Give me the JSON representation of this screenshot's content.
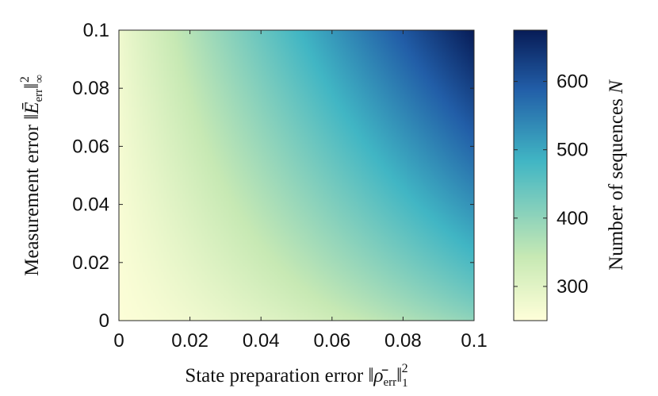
{
  "chart_data": {
    "type": "heatmap",
    "title": "",
    "xlabel": {
      "text": "State preparation error",
      "symbol": "‖ρ̄",
      "symbol_sub": "err",
      "symbol_tail": "‖",
      "norm_sub": "1",
      "norm_sup": "2"
    },
    "ylabel": {
      "text": "Measurement error",
      "symbol": "‖Ē",
      "symbol_sub": "err",
      "symbol_tail": "‖",
      "norm_sub": "∞",
      "norm_sup": "2"
    },
    "x_ticks": [
      "0",
      "0.02",
      "0.04",
      "0.06",
      "0.08",
      "0.1"
    ],
    "y_ticks": [
      "0",
      "0.02",
      "0.04",
      "0.06",
      "0.08",
      "0.1"
    ],
    "xlim": [
      0,
      0.1
    ],
    "ylim": [
      0,
      0.1
    ],
    "colorbar": {
      "label_text": "Number of sequences",
      "label_symbol": "N",
      "ticks": [
        "300",
        "400",
        "500",
        "600"
      ],
      "range": [
        250,
        675
      ],
      "colormap": "YlGnBu"
    },
    "grid": false,
    "corner_values": {
      "x0_y0": 255,
      "x0.1_y0": 400,
      "x0_y0.1": 275,
      "x0.1_y0.1": 675
    },
    "colors": {
      "low": "#FFFFD9",
      "mid_low": "#C7E9B4",
      "mid": "#41B6C4",
      "mid_high": "#225EA8",
      "high": "#081D58"
    }
  }
}
